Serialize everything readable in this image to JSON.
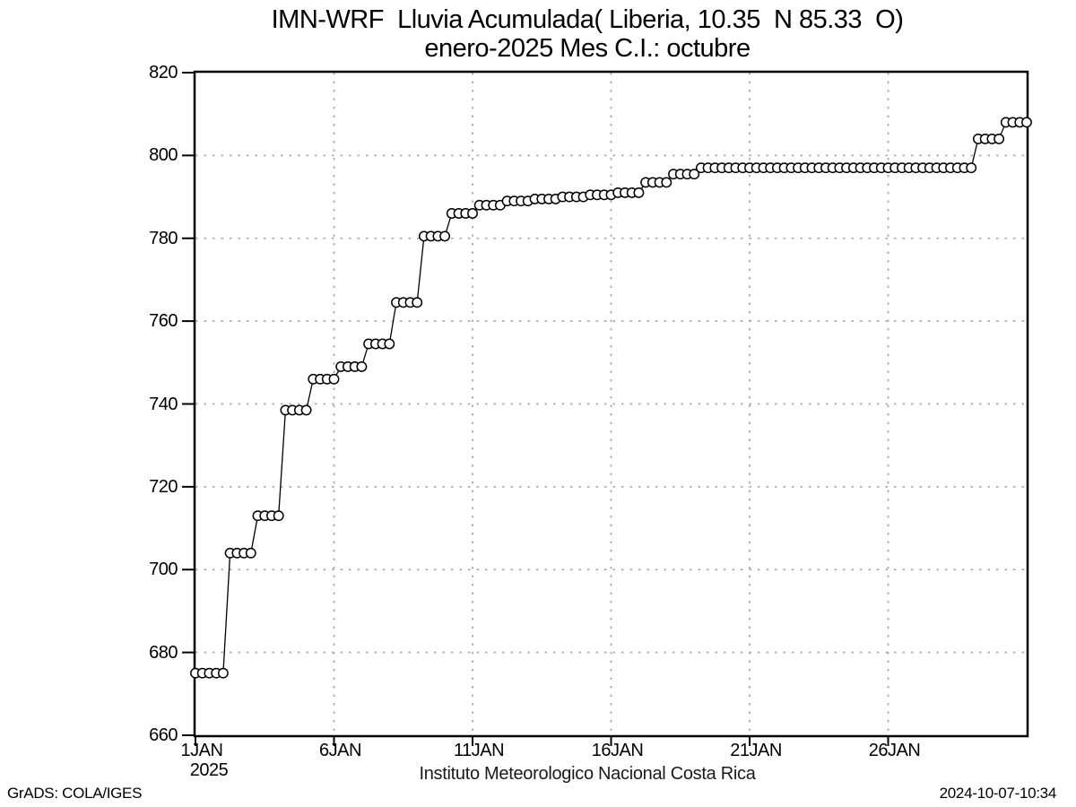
{
  "header": {
    "title_line1": "IMN-WRF  Lluvia Acumulada( Liberia, 10.35  N 85.33  O)",
    "title_line2": "enero-2025 Mes C.I.: octubre"
  },
  "footer": {
    "caption": "Instituto Meteorologico Nacional Costa Rica",
    "credit": "GrADS: COLA/IGES",
    "timestamp": "2024-10-07-10:34"
  },
  "chart_data": {
    "type": "line",
    "title": "IMN-WRF  Lluvia Acumulada( Liberia, 10.35  N 85.33  O)",
    "subtitle": "enero-2025 Mes C.I.: octubre",
    "xlabel": "Instituto Meteorologico Nacional Costa Rica",
    "ylabel": "",
    "ylim": [
      660,
      820
    ],
    "xlim_days": [
      1,
      31
    ],
    "y_ticks": [
      660,
      680,
      700,
      720,
      740,
      760,
      780,
      800,
      820
    ],
    "x_ticks": [
      {
        "day": 1,
        "label": "1JAN",
        "sublabel": "2025"
      },
      {
        "day": 6,
        "label": "6JAN"
      },
      {
        "day": 11,
        "label": "11JAN"
      },
      {
        "day": 16,
        "label": "16JAN"
      },
      {
        "day": 21,
        "label": "21JAN"
      },
      {
        "day": 26,
        "label": "26JAN"
      }
    ],
    "grid": true,
    "grid_style": "dotted",
    "grid_color": "#ababab",
    "line_color": "#000000",
    "marker": "open-circle",
    "marker_fill": "#ffffff",
    "series": [
      {
        "name": "Lluvia acumulada (mm)",
        "sampling": "6-hourly (4 points per day), cumulative rainfall",
        "daily_values_mm": [
          675,
          704,
          713,
          738.5,
          746,
          749,
          754.5,
          764.5,
          780.5,
          786,
          788,
          789,
          789.5,
          790,
          790.5,
          791,
          793.5,
          795.5,
          797,
          797,
          797,
          797,
          797,
          797,
          797,
          797,
          797,
          797,
          804,
          808
        ],
        "first_point": {
          "day": 1.0,
          "value": 675
        },
        "last_point": {
          "day": 31.0,
          "value": 808
        }
      }
    ]
  }
}
